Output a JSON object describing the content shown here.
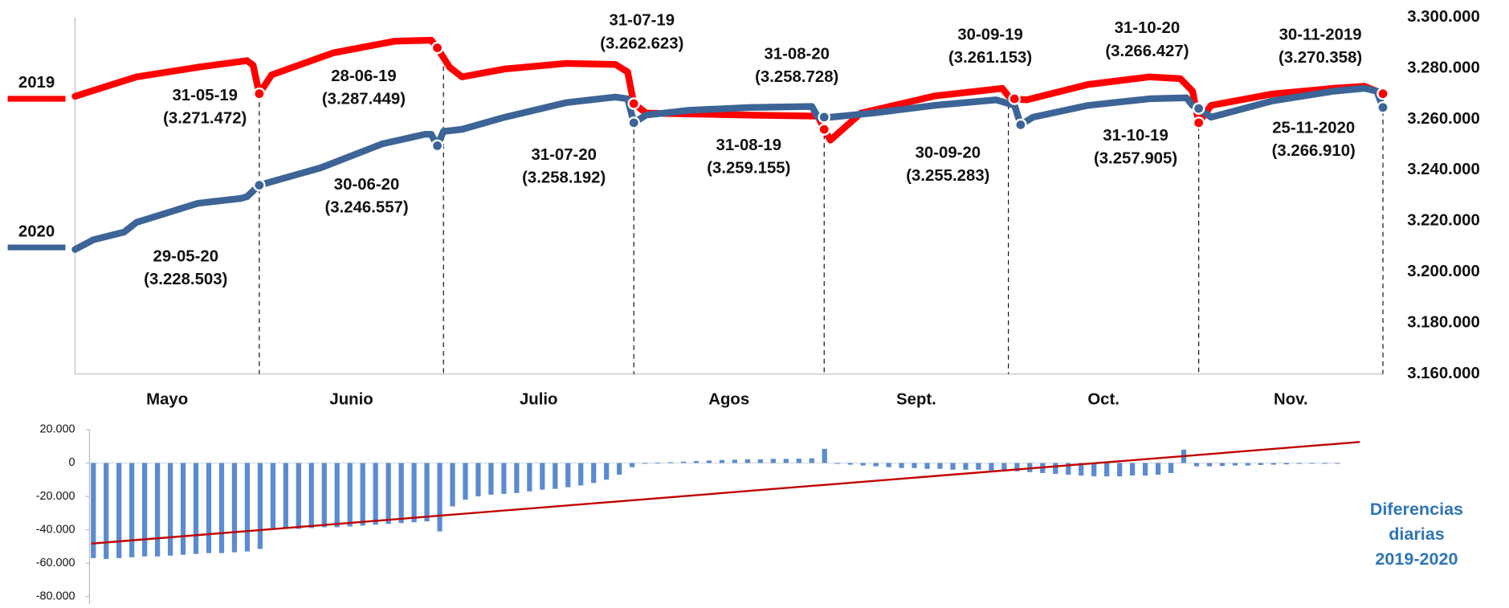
{
  "chart_data": [
    {
      "type": "line",
      "categories": [
        "Mayo",
        "Junio",
        "Julio",
        "Agos",
        "Sept.",
        "Oct.",
        "Nov."
      ],
      "xlim": [
        0,
        213
      ],
      "ylim": [
        3160000,
        3300000
      ],
      "yticks": [
        {
          "value": 3300000,
          "label": "3.300.000"
        },
        {
          "value": 3280000,
          "label": "3.280.000"
        },
        {
          "value": 3260000,
          "label": "3.260.000"
        },
        {
          "value": 3240000,
          "label": "3.240.000"
        },
        {
          "value": 3220000,
          "label": "3.220.000"
        },
        {
          "value": 3200000,
          "label": "3.200.000"
        },
        {
          "value": 3180000,
          "label": "3.180.000"
        },
        {
          "value": 3160000,
          "label": "3.160.000"
        }
      ],
      "series": [
        {
          "name": "2019",
          "color": "#ff0000",
          "x": [
            0,
            10,
            20,
            28,
            29,
            30,
            32,
            42,
            52,
            58,
            59,
            61,
            63,
            70,
            80,
            88,
            90,
            91,
            93,
            110,
            121,
            122,
            123,
            128,
            140,
            150,
            151,
            152,
            153,
            155,
            165,
            175,
            180,
            182,
            183,
            185,
            195,
            205,
            210,
            213
          ],
          "values": [
            3269000,
            3276600,
            3280400,
            3283000,
            3281200,
            3270000,
            3277400,
            3286000,
            3290600,
            3291000,
            3288000,
            3280400,
            3276600,
            3279700,
            3281900,
            3281500,
            3278500,
            3266100,
            3262400,
            3261600,
            3261200,
            3256000,
            3251800,
            3262400,
            3269100,
            3271800,
            3272100,
            3269100,
            3268000,
            3267600,
            3273600,
            3276600,
            3275900,
            3271000,
            3258600,
            3265400,
            3269900,
            3272100,
            3272900,
            3270000
          ]
        },
        {
          "name": "2020",
          "color": "#3c6496",
          "x": [
            0,
            3,
            8,
            10,
            20,
            27,
            28,
            30,
            40,
            50,
            57,
            58,
            59,
            60,
            63,
            70,
            80,
            88,
            90,
            91,
            93,
            100,
            110,
            120,
            121,
            122,
            123,
            130,
            140,
            150,
            153,
            154,
            156,
            165,
            175,
            181,
            182,
            183,
            185,
            195,
            205,
            210,
            212,
            213
          ],
          "values": [
            3208900,
            3212700,
            3215700,
            3219500,
            3227000,
            3228900,
            3229600,
            3234100,
            3240900,
            3250300,
            3254100,
            3254100,
            3249600,
            3255200,
            3256000,
            3260800,
            3266500,
            3268700,
            3268000,
            3258600,
            3261600,
            3263500,
            3264600,
            3265000,
            3260800,
            3260800,
            3260800,
            3262400,
            3265400,
            3267600,
            3265400,
            3257800,
            3260800,
            3265400,
            3268000,
            3268400,
            3265400,
            3264200,
            3260800,
            3267200,
            3271000,
            3272100,
            3271000,
            3264600
          ]
        }
      ],
      "annotations": [
        {
          "date": "31-05-19",
          "value": "(3.271.472)",
          "series": "2019",
          "x": 30
        },
        {
          "date": "28-06-19",
          "value": "(3.287.449)",
          "series": "2019",
          "x": 59
        },
        {
          "date": "31-07-19",
          "value": "(3.262.623)",
          "series": "2019",
          "x": 91
        },
        {
          "date": "31-08-20",
          "value": "(3.258.728)",
          "series": "2020",
          "x": 122
        },
        {
          "date": "30-09-19",
          "value": "(3.261.153)",
          "series": "2019",
          "x": 153
        },
        {
          "date": "31-10-20",
          "value": "(3.266.427)",
          "series": "2020",
          "x": 183
        },
        {
          "date": "30-11-2019",
          "value": "(3.270.358)",
          "series": "2019",
          "x": 213
        },
        {
          "date": "29-05-20",
          "value": "(3.228.503)",
          "series": "2020",
          "x": 30
        },
        {
          "date": "30-06-20",
          "value": "(3.246.557)",
          "series": "2020",
          "x": 59
        },
        {
          "date": "31-07-20",
          "value": "(3.258.192)",
          "series": "2020",
          "x": 91
        },
        {
          "date": "31-08-19",
          "value": "(3.259.155)",
          "series": "2019",
          "x": 122
        },
        {
          "date": "30-09-20",
          "value": "(3.255.283)",
          "series": "2020",
          "x": 154
        },
        {
          "date": "31-10-19",
          "value": "(3.257.905)",
          "series": "2019",
          "x": 183
        },
        {
          "date": "25-11-2020",
          "value": "(3.266.910)",
          "series": "2020",
          "x": 213
        }
      ]
    },
    {
      "type": "bar",
      "text": [
        "Diferencias",
        "diarias",
        "2019-2020"
      ],
      "color": "#5b8bd0",
      "ylim": [
        -80000,
        20000
      ],
      "yticks": [
        {
          "value": 20000,
          "label": "20.000"
        },
        0,
        {
          "value": -20000,
          "label": "-20.000"
        },
        {
          "value": -40000,
          "label": "-40.000"
        },
        {
          "value": -60000,
          "label": "-60.000"
        },
        {
          "value": -80000,
          "label": "-80.000"
        }
      ],
      "values": [
        -57000,
        -57500,
        -57000,
        -56500,
        -56000,
        -56000,
        -55500,
        -55000,
        -54500,
        -54000,
        -54000,
        -53500,
        -53000,
        -51500,
        -39000,
        -39500,
        -39500,
        -39000,
        -38500,
        -38500,
        -38000,
        -37500,
        -37000,
        -36500,
        -36000,
        -35500,
        -35000,
        -41000,
        -26000,
        -22000,
        -20000,
        -19000,
        -18500,
        -18000,
        -17000,
        -16000,
        -15500,
        -14500,
        -13500,
        -12000,
        -10000,
        -7000,
        -2500,
        0,
        200,
        500,
        800,
        1200,
        1500,
        1800,
        2000,
        2200,
        2200,
        2500,
        2500,
        2600,
        2800,
        8500,
        -500,
        -1000,
        -1500,
        -2000,
        -2500,
        -3000,
        -3000,
        -3500,
        -3500,
        -4000,
        -4000,
        -4000,
        -4500,
        -4500,
        -5000,
        -5500,
        -6000,
        -6500,
        -7000,
        -7500,
        -8000,
        -8000,
        -8000,
        -7500,
        -7500,
        -7000,
        -6000,
        8000,
        -2000,
        -2000,
        -1800,
        -1500,
        -1500,
        -1200,
        -1000,
        -800,
        -500,
        -300,
        -200,
        0
      ],
      "trendline": {
        "color": "#c00000",
        "values": [
          -48300,
          12600
        ]
      }
    }
  ]
}
